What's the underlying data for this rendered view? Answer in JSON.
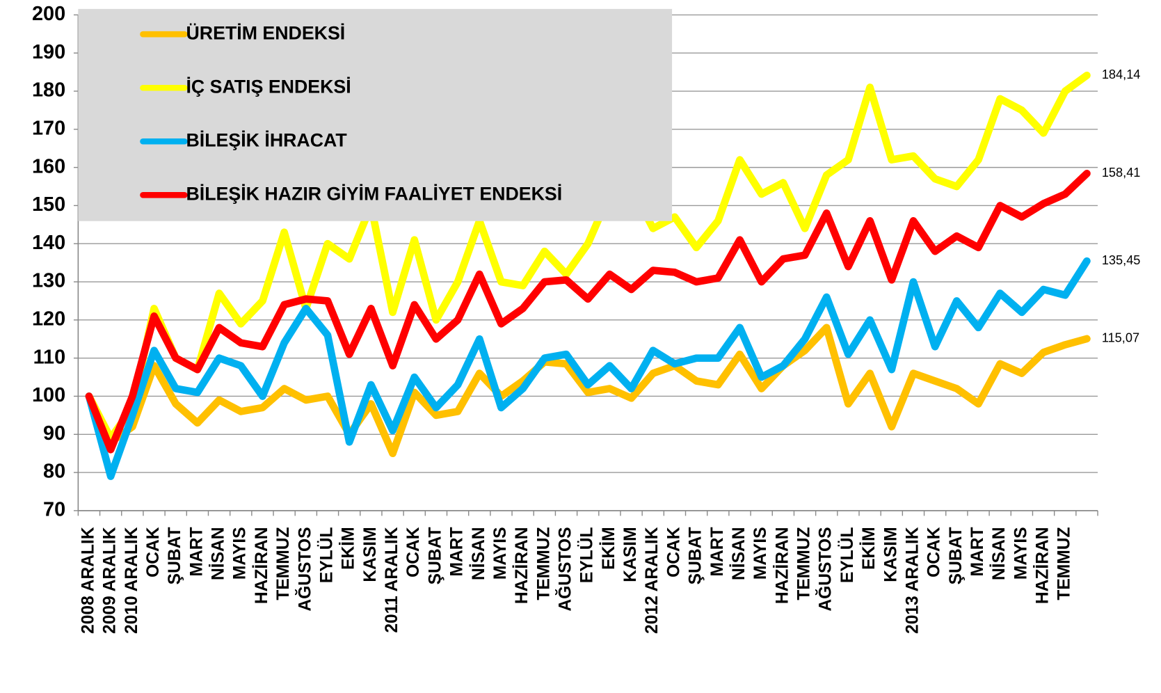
{
  "chart_data": {
    "type": "line",
    "categories": [
      "2008 ARALIK",
      "2009 ARALIK",
      "2010 ARALIK",
      "OCAK",
      "ŞUBAT",
      "MART",
      "NİSAN",
      "MAYIS",
      "HAZİRAN",
      "TEMMUZ",
      "AĞUSTOS",
      "EYLÜL",
      "EKİM",
      "KASIM",
      "2011 ARALIK",
      "OCAK",
      "ŞUBAT",
      "MART",
      "NİSAN",
      "MAYIS",
      "HAZİRAN",
      "TEMMUZ",
      "AĞUSTOS",
      "EYLÜL",
      "EKİM",
      "KASIM",
      "2012 ARALIK",
      "OCAK",
      "ŞUBAT",
      "MART",
      "NİSAN",
      "MAYIS",
      "HAZİRAN",
      "TEMMUZ",
      "AĞUSTOS",
      "EYLÜL",
      "EKİM",
      "KASIM",
      "2013 ARALIK",
      "OCAK",
      "ŞUBAT",
      "MART",
      "NİSAN",
      "MAYIS",
      "HAZİRAN",
      "TEMMUZ",
      null
    ],
    "series": [
      {
        "name": "ÜRETİM ENDEKSİ",
        "color": "#ffc000",
        "values": [
          100,
          88,
          92,
          108,
          98,
          93,
          99,
          96,
          97,
          102,
          99,
          100,
          90,
          98,
          85,
          101,
          95,
          96,
          106,
          100,
          104,
          109,
          108.5,
          101,
          102,
          99.5,
          106,
          108,
          104,
          103,
          111,
          102,
          108,
          112,
          118,
          98,
          106,
          92,
          106,
          104,
          102,
          98,
          108.5,
          106,
          111.5,
          113.5,
          115.07
        ],
        "value_labels": [
          null,
          null,
          null,
          null,
          null,
          null,
          null,
          null,
          null,
          null,
          null,
          null,
          null,
          null,
          null,
          null,
          null,
          null,
          null,
          null,
          null,
          null,
          null,
          null,
          null,
          null,
          null,
          null,
          null,
          null,
          null,
          null,
          null,
          null,
          null,
          null,
          null,
          null,
          null,
          null,
          null,
          null,
          null,
          null,
          null,
          null,
          "115,07"
        ]
      },
      {
        "name": "İÇ SATIŞ ENDEKSİ",
        "color": "#ffff00",
        "values": [
          100,
          89,
          97,
          123,
          110,
          107,
          127,
          119,
          125,
          143,
          123,
          140,
          136,
          150,
          122,
          141,
          120,
          130,
          146,
          130,
          129,
          138,
          132,
          140,
          153,
          155,
          144,
          147,
          139,
          146,
          162,
          153,
          156,
          144,
          158,
          162,
          181,
          162,
          163,
          157,
          155,
          162,
          178,
          175,
          169,
          180,
          184.14
        ],
        "value_labels": [
          null,
          null,
          null,
          null,
          null,
          null,
          null,
          null,
          null,
          null,
          null,
          null,
          null,
          null,
          null,
          null,
          null,
          null,
          null,
          null,
          null,
          null,
          null,
          null,
          null,
          null,
          null,
          null,
          null,
          null,
          null,
          null,
          null,
          null,
          null,
          null,
          null,
          null,
          null,
          null,
          null,
          null,
          null,
          null,
          null,
          null,
          "184,14"
        ]
      },
      {
        "name": "BİLEŞİK İHRACAT",
        "color": "#00b0f0",
        "values": [
          100,
          79,
          95,
          112,
          102,
          101,
          110,
          108,
          100,
          114,
          123,
          116,
          88,
          103,
          91,
          105,
          97,
          103,
          115,
          97,
          102,
          110,
          111,
          103,
          108,
          102,
          112,
          108.5,
          110,
          110,
          118,
          105,
          108,
          115,
          126,
          111,
          120,
          107,
          130,
          113,
          125,
          118,
          127,
          122,
          128,
          126.5,
          135.45
        ],
        "value_labels": [
          null,
          null,
          null,
          null,
          null,
          null,
          null,
          null,
          null,
          null,
          null,
          null,
          null,
          null,
          null,
          null,
          null,
          null,
          null,
          null,
          null,
          null,
          null,
          null,
          null,
          null,
          null,
          null,
          null,
          null,
          null,
          null,
          null,
          null,
          null,
          null,
          null,
          null,
          null,
          null,
          null,
          null,
          null,
          null,
          null,
          null,
          "135,45"
        ]
      },
      {
        "name": "BİLEŞİK HAZIR GİYİM FAALİYET ENDEKSİ",
        "color": "#ff0000",
        "values": [
          100,
          86,
          100,
          121,
          110,
          107,
          118,
          114,
          113,
          124,
          125.5,
          125,
          111,
          123,
          108,
          124,
          115,
          120,
          132,
          119,
          123,
          130,
          130.5,
          125.5,
          132,
          128,
          133,
          132.5,
          130,
          131,
          141,
          130,
          136,
          137,
          148,
          134,
          146,
          130.5,
          146,
          138,
          142,
          139,
          150,
          147,
          150.5,
          153,
          158.41
        ],
        "value_labels": [
          null,
          null,
          null,
          null,
          null,
          null,
          null,
          null,
          null,
          null,
          null,
          null,
          null,
          null,
          null,
          null,
          null,
          null,
          null,
          null,
          null,
          null,
          null,
          null,
          null,
          null,
          null,
          null,
          null,
          null,
          null,
          null,
          null,
          null,
          null,
          null,
          null,
          null,
          null,
          null,
          null,
          null,
          null,
          null,
          null,
          null,
          "158,41"
        ]
      }
    ],
    "ylim": [
      70,
      200
    ],
    "yticks": [
      70,
      80,
      90,
      100,
      110,
      120,
      130,
      140,
      150,
      160,
      170,
      180,
      190,
      200
    ],
    "grid": true,
    "legend": "upper left"
  }
}
